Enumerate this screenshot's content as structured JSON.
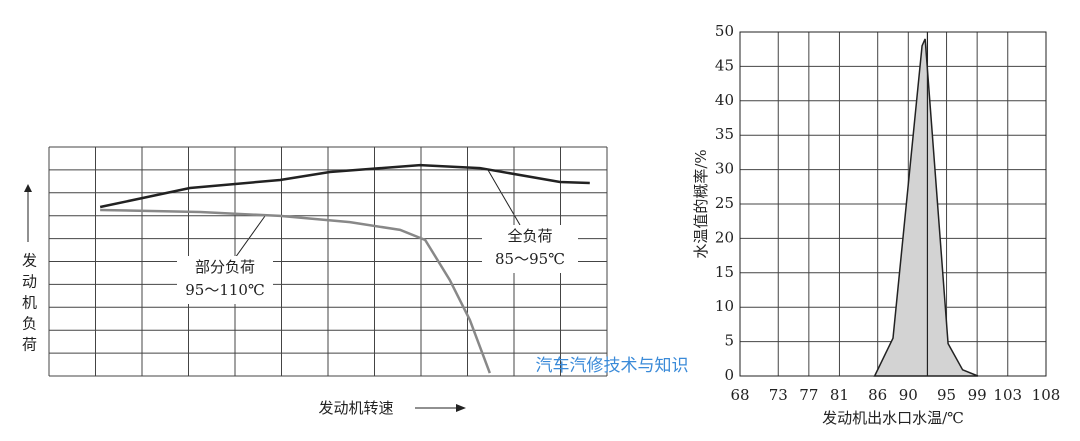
{
  "chart_data": [
    {
      "type": "line",
      "xlabel": "发动机转速",
      "ylabel": "发动机负荷",
      "xlim": [
        0,
        12
      ],
      "ylim": [
        0,
        10
      ],
      "grid": true,
      "series": [
        {
          "name": "全负荷",
          "color": "#222222",
          "range_label": "85～95℃",
          "x": [
            1.1,
            3.03,
            4.97,
            6.04,
            7.98,
            9.27,
            10.99,
            11.63
          ],
          "values": [
            7.38,
            8.21,
            8.56,
            8.91,
            9.21,
            9.08,
            8.47,
            8.43
          ]
        },
        {
          "name": "部分负荷",
          "color": "#888888",
          "range_label": "95～110℃",
          "x": [
            1.1,
            3.25,
            4.97,
            6.47,
            7.55,
            8.09,
            8.62,
            9.05,
            9.48
          ],
          "values": [
            7.25,
            7.16,
            6.99,
            6.72,
            6.38,
            5.94,
            4.19,
            2.45,
            0.13
          ]
        }
      ],
      "watermark": "汽车汽修技术与知识"
    },
    {
      "type": "area",
      "xlabel": "发动机出水口水温/℃",
      "ylabel": "水温值的概率/%",
      "xlim": [
        68,
        108
      ],
      "ylim": [
        0,
        50
      ],
      "xticks": [
        68,
        73,
        77,
        81,
        86,
        90,
        95,
        99,
        103,
        108
      ],
      "yticks": [
        0,
        5,
        10,
        15,
        20,
        25,
        30,
        35,
        40,
        45,
        50
      ],
      "grid": true,
      "color": "#d3d3d3",
      "reference_line_x": 92.5,
      "x": [
        85.6,
        88,
        91.8,
        92.2,
        95.2,
        97.1,
        99.1
      ],
      "values": [
        0,
        5.5,
        48,
        49,
        4.7,
        0.9,
        0
      ]
    }
  ]
}
